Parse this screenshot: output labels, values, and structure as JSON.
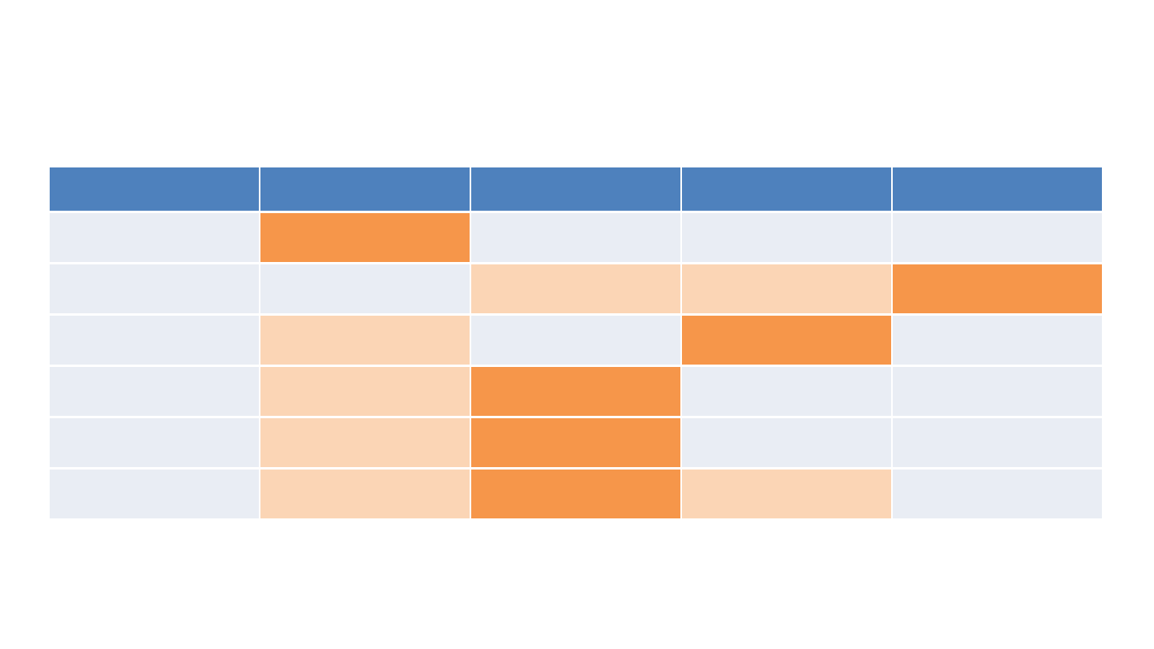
{
  "canvas": {
    "background_color": "#ffffff"
  },
  "table": {
    "description": "banded-table-with-highlighted-cells",
    "columns": 5,
    "body_rows": 6,
    "cell_colors": {
      "header": "#4e81bd",
      "none": "#e9edf4",
      "strong": "#f6964a",
      "light": "#fbd5b5"
    },
    "header": {
      "cells": [
        "",
        "",
        "",
        "",
        ""
      ]
    },
    "rows": [
      [
        "none",
        "strong",
        "none",
        "none",
        "none"
      ],
      [
        "none",
        "none",
        "light",
        "light",
        "strong"
      ],
      [
        "none",
        "light",
        "none",
        "strong",
        "none"
      ],
      [
        "none",
        "light",
        "strong",
        "none",
        "none"
      ],
      [
        "none",
        "light",
        "strong",
        "none",
        "none"
      ],
      [
        "none",
        "light",
        "strong",
        "light",
        "none"
      ]
    ]
  }
}
